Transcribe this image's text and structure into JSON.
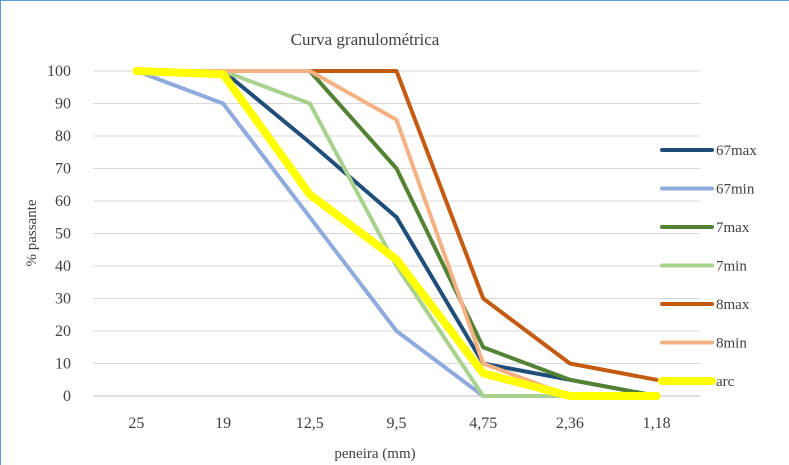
{
  "chart_data": {
    "type": "line",
    "title": "Curva granulométrica",
    "xlabel": "peneira (mm)",
    "ylabel": "% passante",
    "categories": [
      "25",
      "19",
      "12,5",
      "9,5",
      "4,75",
      "2,36",
      "1,18"
    ],
    "ylim": [
      0,
      100
    ],
    "yticks": [
      "0",
      "10",
      "20",
      "30",
      "40",
      "50",
      "60",
      "70",
      "80",
      "90",
      "100"
    ],
    "grid": "horizontal",
    "legend_position": "right",
    "series": [
      {
        "name": "67max",
        "color": "#1f4e79",
        "values": [
          100,
          100,
          78,
          55,
          10,
          5,
          0
        ]
      },
      {
        "name": "67min",
        "color": "#8faadc",
        "values": [
          100,
          90,
          55,
          20,
          0,
          0,
          0
        ]
      },
      {
        "name": "7max",
        "color": "#548235",
        "values": [
          100,
          100,
          100,
          70,
          15,
          5,
          0
        ]
      },
      {
        "name": "7min",
        "color": "#a9d18e",
        "values": [
          100,
          100,
          90,
          40,
          0,
          0,
          0
        ]
      },
      {
        "name": "8max",
        "color": "#c55a11",
        "values": [
          100,
          100,
          100,
          100,
          30,
          10,
          5
        ]
      },
      {
        "name": "8min",
        "color": "#f4b183",
        "values": [
          100,
          100,
          100,
          85,
          10,
          0,
          0
        ]
      },
      {
        "name": "arc",
        "color": "#ffff00",
        "values": [
          100,
          99,
          62,
          42,
          7,
          0,
          0
        ]
      }
    ]
  }
}
